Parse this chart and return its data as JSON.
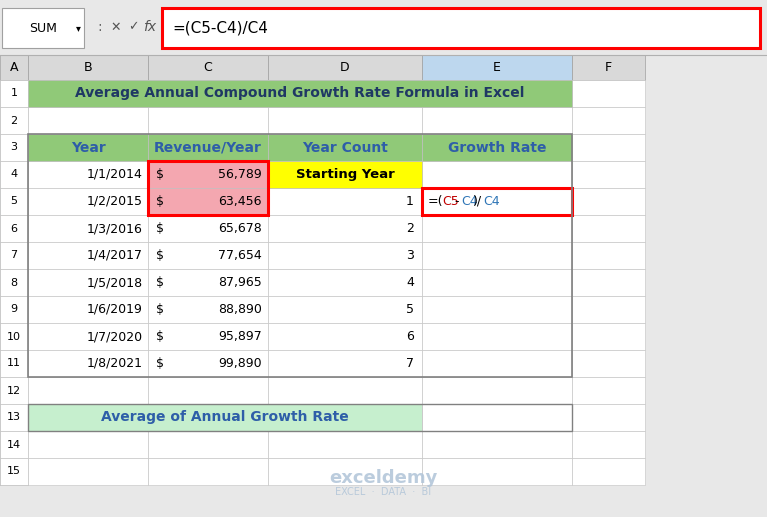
{
  "title": "Average Annual Compound Growth Rate Formula in Excel",
  "formula_bar_text": "=(C5-C4)/C4",
  "name_box": "SUM",
  "col_headers": [
    "A",
    "B",
    "C",
    "D",
    "E",
    "F"
  ],
  "years": [
    "1/1/2014",
    "1/2/2015",
    "1/3/2016",
    "1/4/2017",
    "1/5/2018",
    "1/6/2019",
    "1/7/2020",
    "1/8/2021"
  ],
  "revenues": [
    "56,789",
    "63,456",
    "65,678",
    "77,654",
    "87,965",
    "88,890",
    "95,897",
    "99,890"
  ],
  "year_counts": [
    "",
    "1",
    "2",
    "3",
    "4",
    "5",
    "6",
    "7"
  ],
  "header_bg": "#90c978",
  "title_bg": "#90c978",
  "header_text_color": "#2e5ea8",
  "title_text_color": "#1f3864",
  "revenue_highlight_bg": "#f4a7b0",
  "starting_year_bg": "#ffff00",
  "formula_cell_border": "#ff0000",
  "formula_bar_border": "#ff0000",
  "watermark_color": "#b0c4d8",
  "excel_bg": "#e8e8e8",
  "col_header_bg": "#d9d9d9",
  "row_header_bg": "#d9d9d9",
  "col_header_selected_bg": "#bdd7ee",
  "row_header_selected_bg": "#bdd7ee",
  "avg_row_label": "Average of Annual Growth Rate",
  "avg_row_bg": "#c6efce",
  "grid_color": "#c0c0c0",
  "name_box_bg": "#ffffff",
  "formula_bar_bg": "#ffffff",
  "cell_white": "#ffffff",
  "watermark_line1": "exceldemy",
  "watermark_line2": "EXCEL  ·  DATA  ·  BI"
}
